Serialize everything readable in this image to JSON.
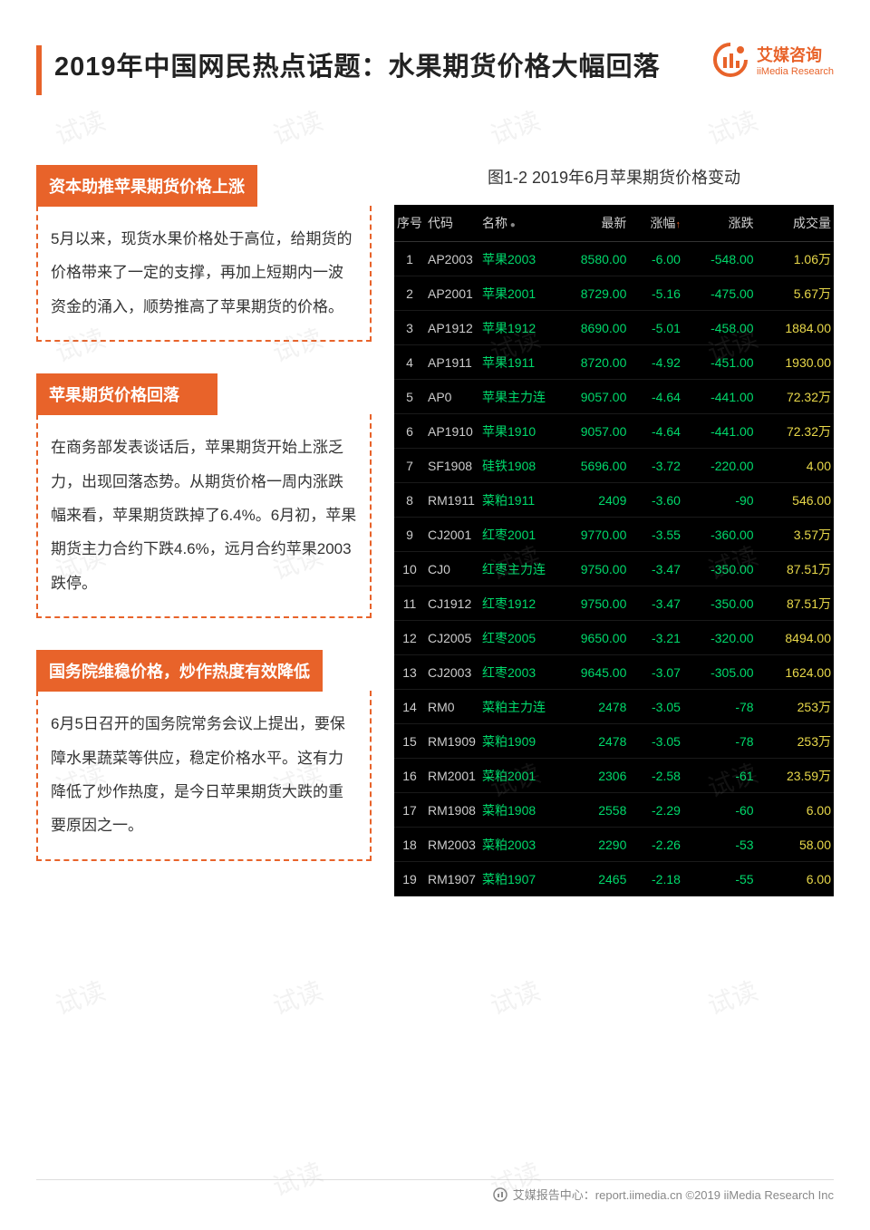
{
  "header": {
    "title": "2019年中国网民热点话题：水果期货价格大幅回落",
    "brand_cn": "艾媒咨询",
    "brand_en": "iiMedia Research",
    "accent_color": "#e8632a"
  },
  "sections": [
    {
      "heading": "资本助推苹果期货价格上涨",
      "body": "5月以来，现货水果价格处于高位，给期货的价格带来了一定的支撑，再加上短期内一波资金的涌入，顺势推高了苹果期货的价格。"
    },
    {
      "heading": "苹果期货价格回落",
      "body": "在商务部发表谈话后，苹果期货开始上涨乏力，出现回落态势。从期货价格一周内涨跌幅来看，苹果期货跌掉了6.4%。6月初，苹果期货主力合约下跌4.6%，远月合约苹果2003跌停。"
    },
    {
      "heading": "国务院维稳价格，炒作热度有效降低",
      "body": "6月5日召开的国务院常务会议上提出，要保障水果蔬菜等供应，稳定价格水平。这有力降低了炒作热度，是今日苹果期货大跌的重要原因之一。"
    }
  ],
  "chart": {
    "title": "图1-2 2019年6月苹果期货价格变动",
    "bg_color": "#000000",
    "text_color": "#cccccc",
    "down_color": "#00d96b",
    "vol_color": "#e8d84a",
    "columns": [
      "序号",
      "代码",
      "名称",
      "最新",
      "涨幅",
      "涨跌",
      "成交量"
    ],
    "sort_col_index": 4,
    "rows": [
      {
        "n": 1,
        "code": "AP2003",
        "name": "苹果2003",
        "last": "8580.00",
        "pct": "-6.00",
        "chg": "-548.00",
        "vol": "1.06万"
      },
      {
        "n": 2,
        "code": "AP2001",
        "name": "苹果2001",
        "last": "8729.00",
        "pct": "-5.16",
        "chg": "-475.00",
        "vol": "5.67万"
      },
      {
        "n": 3,
        "code": "AP1912",
        "name": "苹果1912",
        "last": "8690.00",
        "pct": "-5.01",
        "chg": "-458.00",
        "vol": "1884.00"
      },
      {
        "n": 4,
        "code": "AP1911",
        "name": "苹果1911",
        "last": "8720.00",
        "pct": "-4.92",
        "chg": "-451.00",
        "vol": "1930.00"
      },
      {
        "n": 5,
        "code": "AP0",
        "name": "苹果主力连",
        "last": "9057.00",
        "pct": "-4.64",
        "chg": "-441.00",
        "vol": "72.32万"
      },
      {
        "n": 6,
        "code": "AP1910",
        "name": "苹果1910",
        "last": "9057.00",
        "pct": "-4.64",
        "chg": "-441.00",
        "vol": "72.32万"
      },
      {
        "n": 7,
        "code": "SF1908",
        "name": "硅铁1908",
        "last": "5696.00",
        "pct": "-3.72",
        "chg": "-220.00",
        "vol": "4.00"
      },
      {
        "n": 8,
        "code": "RM1911",
        "name": "菜粕1911",
        "last": "2409",
        "pct": "-3.60",
        "chg": "-90",
        "vol": "546.00"
      },
      {
        "n": 9,
        "code": "CJ2001",
        "name": "红枣2001",
        "last": "9770.00",
        "pct": "-3.55",
        "chg": "-360.00",
        "vol": "3.57万"
      },
      {
        "n": 10,
        "code": "CJ0",
        "name": "红枣主力连",
        "last": "9750.00",
        "pct": "-3.47",
        "chg": "-350.00",
        "vol": "87.51万"
      },
      {
        "n": 11,
        "code": "CJ1912",
        "name": "红枣1912",
        "last": "9750.00",
        "pct": "-3.47",
        "chg": "-350.00",
        "vol": "87.51万"
      },
      {
        "n": 12,
        "code": "CJ2005",
        "name": "红枣2005",
        "last": "9650.00",
        "pct": "-3.21",
        "chg": "-320.00",
        "vol": "8494.00"
      },
      {
        "n": 13,
        "code": "CJ2003",
        "name": "红枣2003",
        "last": "9645.00",
        "pct": "-3.07",
        "chg": "-305.00",
        "vol": "1624.00"
      },
      {
        "n": 14,
        "code": "RM0",
        "name": "菜粕主力连",
        "last": "2478",
        "pct": "-3.05",
        "chg": "-78",
        "vol": "253万"
      },
      {
        "n": 15,
        "code": "RM1909",
        "name": "菜粕1909",
        "last": "2478",
        "pct": "-3.05",
        "chg": "-78",
        "vol": "253万"
      },
      {
        "n": 16,
        "code": "RM2001",
        "name": "菜粕2001",
        "last": "2306",
        "pct": "-2.58",
        "chg": "-61",
        "vol": "23.59万"
      },
      {
        "n": 17,
        "code": "RM1908",
        "name": "菜粕1908",
        "last": "2558",
        "pct": "-2.29",
        "chg": "-60",
        "vol": "6.00"
      },
      {
        "n": 18,
        "code": "RM2003",
        "name": "菜粕2003",
        "last": "2290",
        "pct": "-2.26",
        "chg": "-53",
        "vol": "58.00"
      },
      {
        "n": 19,
        "code": "RM1907",
        "name": "菜粕1907",
        "last": "2465",
        "pct": "-2.18",
        "chg": "-55",
        "vol": "6.00"
      }
    ]
  },
  "footer": {
    "text": "艾媒报告中心：report.iimedia.cn   ©2019  iiMedia Research Inc"
  },
  "watermark_text": "试读"
}
